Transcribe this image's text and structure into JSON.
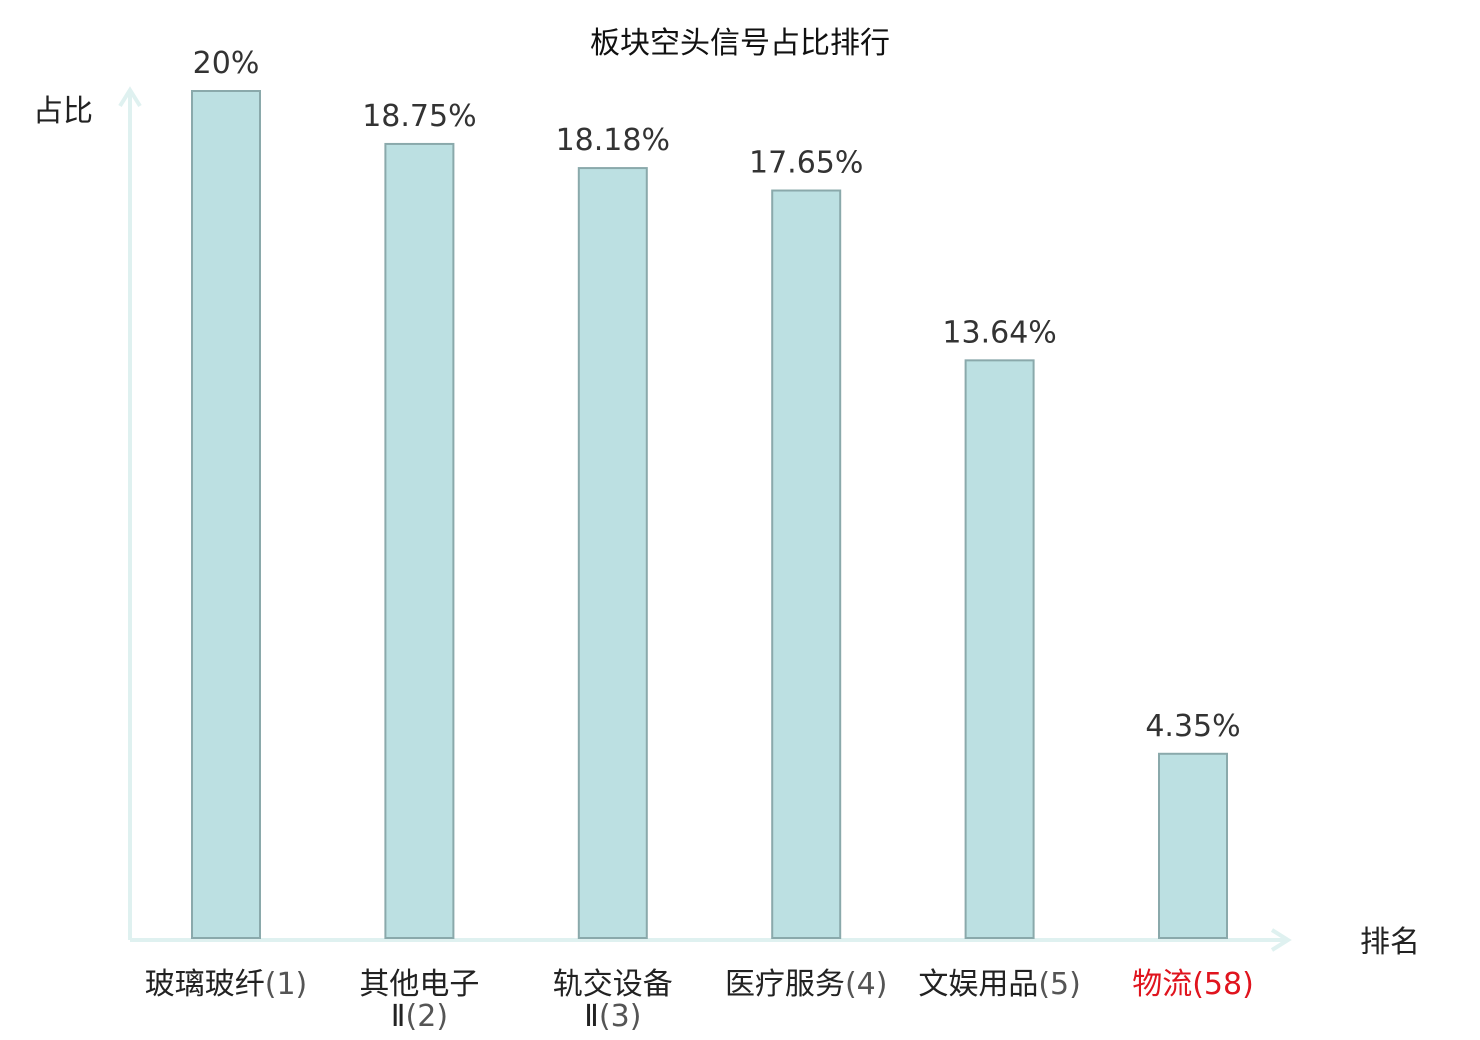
{
  "chart_data": {
    "type": "bar",
    "title": "板块空头信号占比排行",
    "ylabel": "占比",
    "xlabel": "排名",
    "ylim": [
      0,
      20
    ],
    "grid": false,
    "legend": "none",
    "categories": [
      {
        "name_lines": [
          "玻璃玻纤"
        ],
        "rank": "(1)",
        "highlight": false
      },
      {
        "name_lines": [
          "其他电子",
          "Ⅱ"
        ],
        "rank": "(2)",
        "highlight": false
      },
      {
        "name_lines": [
          "轨交设备",
          "Ⅱ"
        ],
        "rank": "(3)",
        "highlight": false
      },
      {
        "name_lines": [
          "医疗服务"
        ],
        "rank": "(4)",
        "highlight": false
      },
      {
        "name_lines": [
          "文娱用品"
        ],
        "rank": "(5)",
        "highlight": false
      },
      {
        "name_lines": [
          "物流"
        ],
        "rank": "(58)",
        "highlight": true
      }
    ],
    "values": [
      20,
      18.75,
      18.18,
      17.65,
      13.64,
      4.35
    ],
    "value_labels": [
      "20%",
      "18.75%",
      "18.18%",
      "17.65%",
      "13.64%",
      "4.35%"
    ]
  },
  "colors": {
    "bar_fill": "#bce0e2",
    "bar_stroke": "#8aa9ab",
    "axis": "#dff1f0",
    "highlight_text": "#e0141e"
  }
}
